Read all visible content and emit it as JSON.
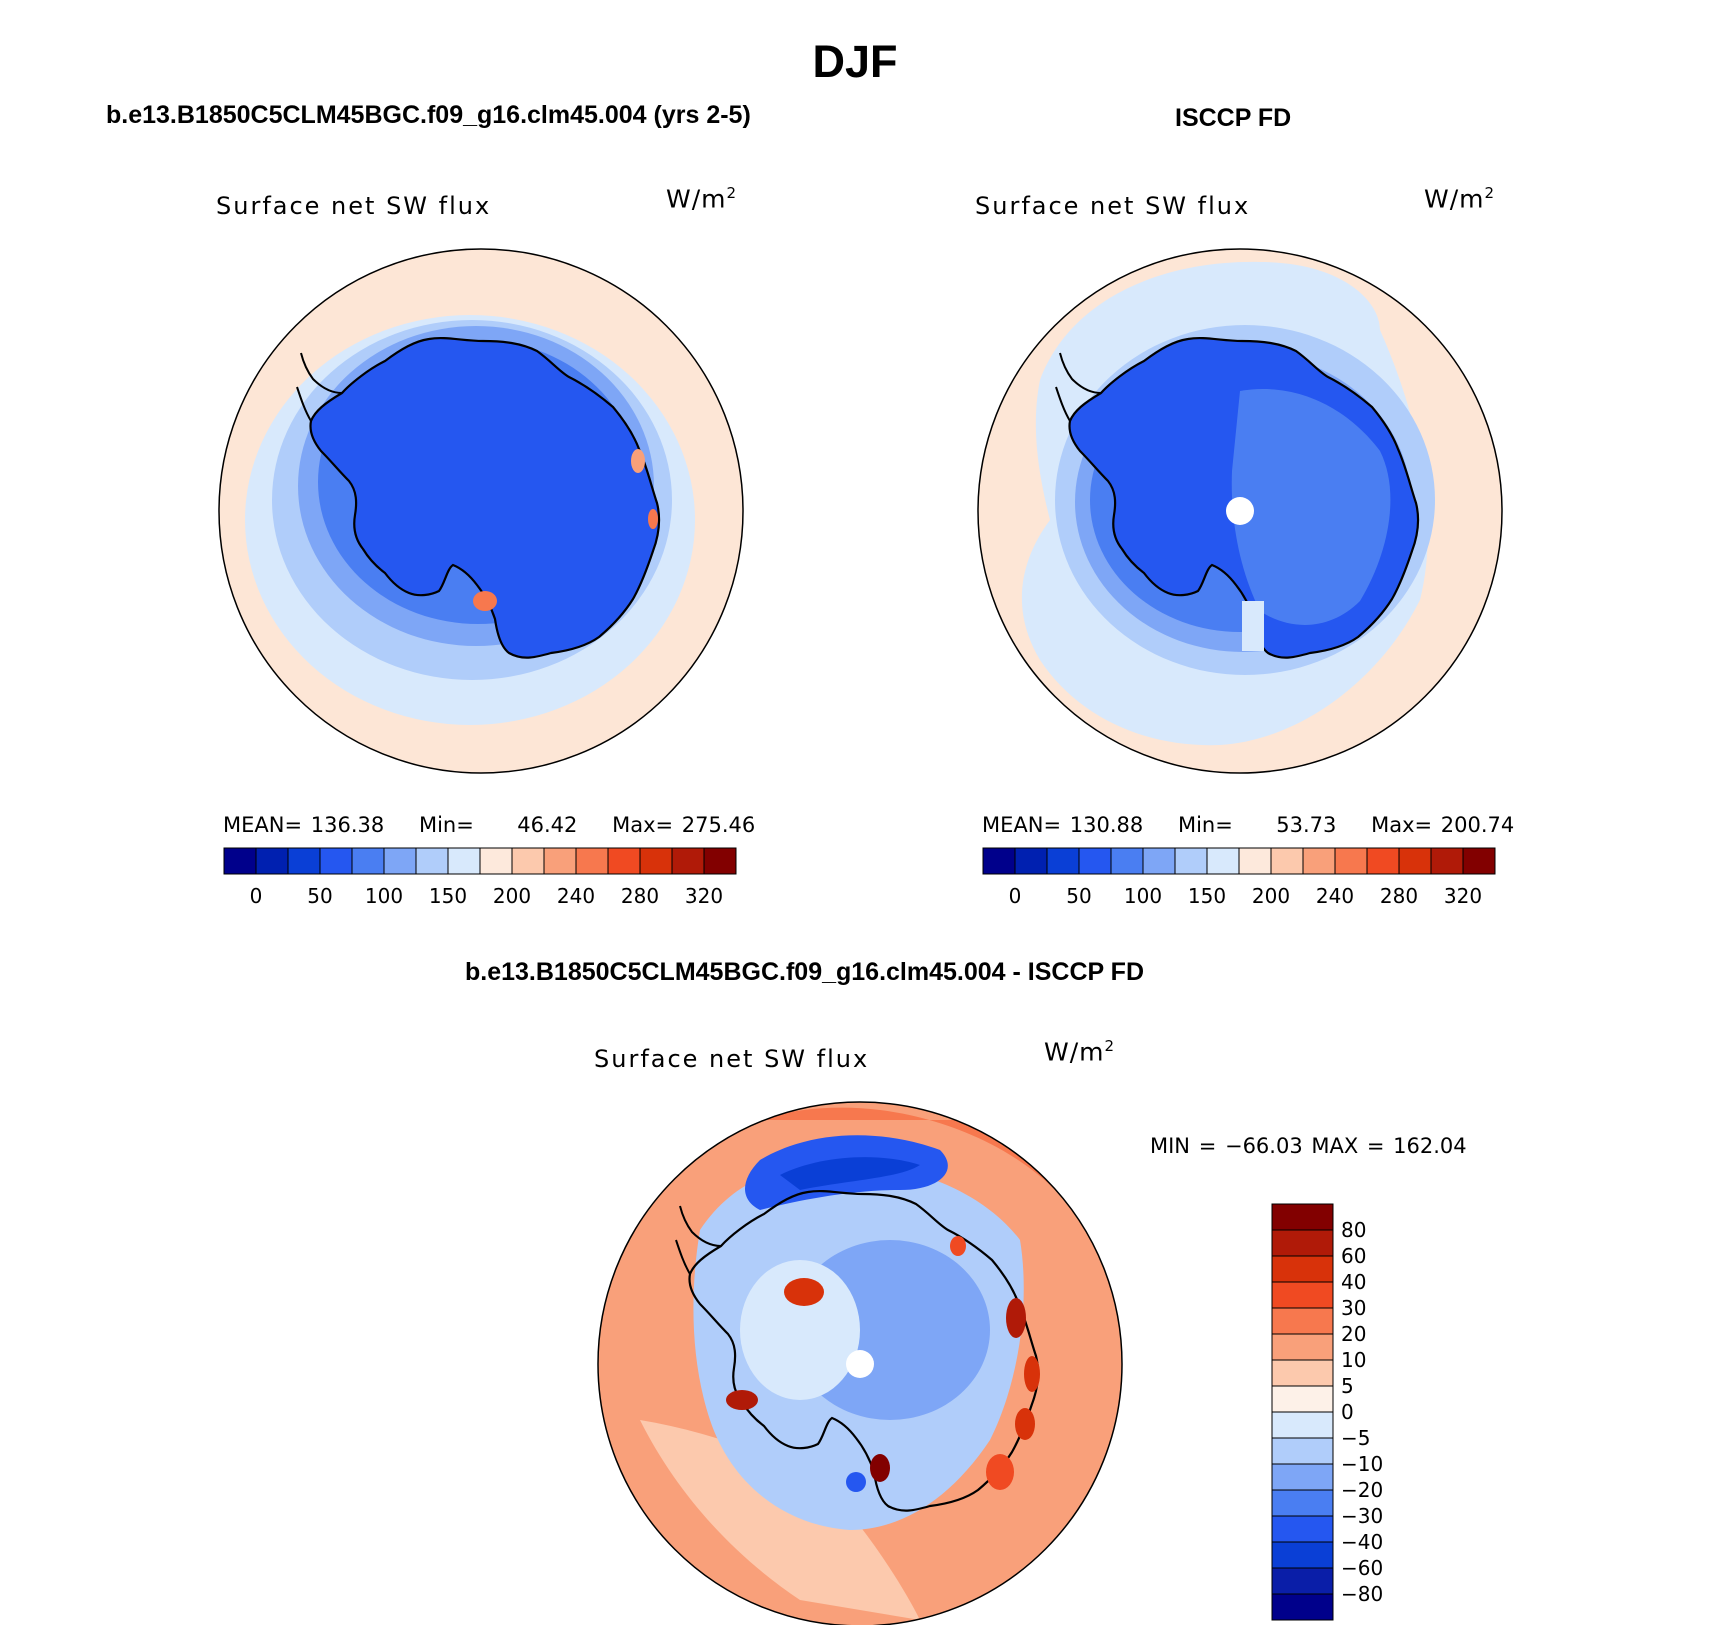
{
  "main_title": "DJF",
  "panels": [
    {
      "title": "b.e13.B1850C5CLM45BGC.f09_g16.clm45.004 (yrs 2-5)",
      "variable": "Surface net SW flux",
      "units_base": "W/m",
      "units_exp": "2",
      "mean_label": "MEAN=",
      "mean": "136.38",
      "min_label": "Min=",
      "min": "46.42",
      "max_label": "Max=",
      "max": "275.46"
    },
    {
      "title": "ISCCP FD",
      "variable": "Surface net SW flux",
      "units_base": "W/m",
      "units_exp": "2",
      "mean_label": "MEAN=",
      "mean": "130.88",
      "min_label": "Min=",
      "min": "53.73",
      "max_label": "Max=",
      "max": "200.74"
    },
    {
      "title": "b.e13.B1850C5CLM45BGC.f09_g16.clm45.004 - ISCCP FD",
      "variable": "Surface net SW flux",
      "units_base": "W/m",
      "units_exp": "2",
      "minmax_label": "MIN = −66.03 MAX = 162.04"
    }
  ],
  "colorbar_abs": {
    "colors": [
      "#00008b",
      "#0020b0",
      "#0a3fd6",
      "#2557f0",
      "#4a7ef2",
      "#7ea6f6",
      "#b0cdfa",
      "#d8e9fc",
      "#fde9dc",
      "#fcc9ad",
      "#f9a07a",
      "#f7784e",
      "#f04a22",
      "#d8320a",
      "#b01a08",
      "#820000"
    ],
    "tick_labels": [
      "0",
      "50",
      "100",
      "150",
      "200",
      "240",
      "280",
      "320"
    ]
  },
  "colorbar_diff": {
    "colors": [
      "#00008b",
      "#0a1ea8",
      "#0a3fd6",
      "#2557f0",
      "#4a7ef2",
      "#7ea6f6",
      "#b0cdfa",
      "#d8e9fc",
      "#fdf1e8",
      "#fcc9ad",
      "#f9a07a",
      "#f7784e",
      "#f04a22",
      "#d8320a",
      "#b01a08",
      "#820000"
    ],
    "tick_labels": [
      "80",
      "60",
      "40",
      "30",
      "20",
      "10",
      "5",
      "0",
      "−5",
      "−10",
      "−20",
      "−30",
      "−40",
      "−60",
      "−80"
    ]
  },
  "map_colors": {
    "ocean_warm": "#fde6d6",
    "ocean_pale_blue": "#d8e9fc",
    "light_blue": "#b0cdfa",
    "mid_blue": "#7ea6f6",
    "deep_blue": "#2557f0",
    "ice_blue": "#1c4fe6",
    "diff_warm": "#f9a07a",
    "diff_red": "#d8320a",
    "diff_dark_red": "#820000"
  }
}
